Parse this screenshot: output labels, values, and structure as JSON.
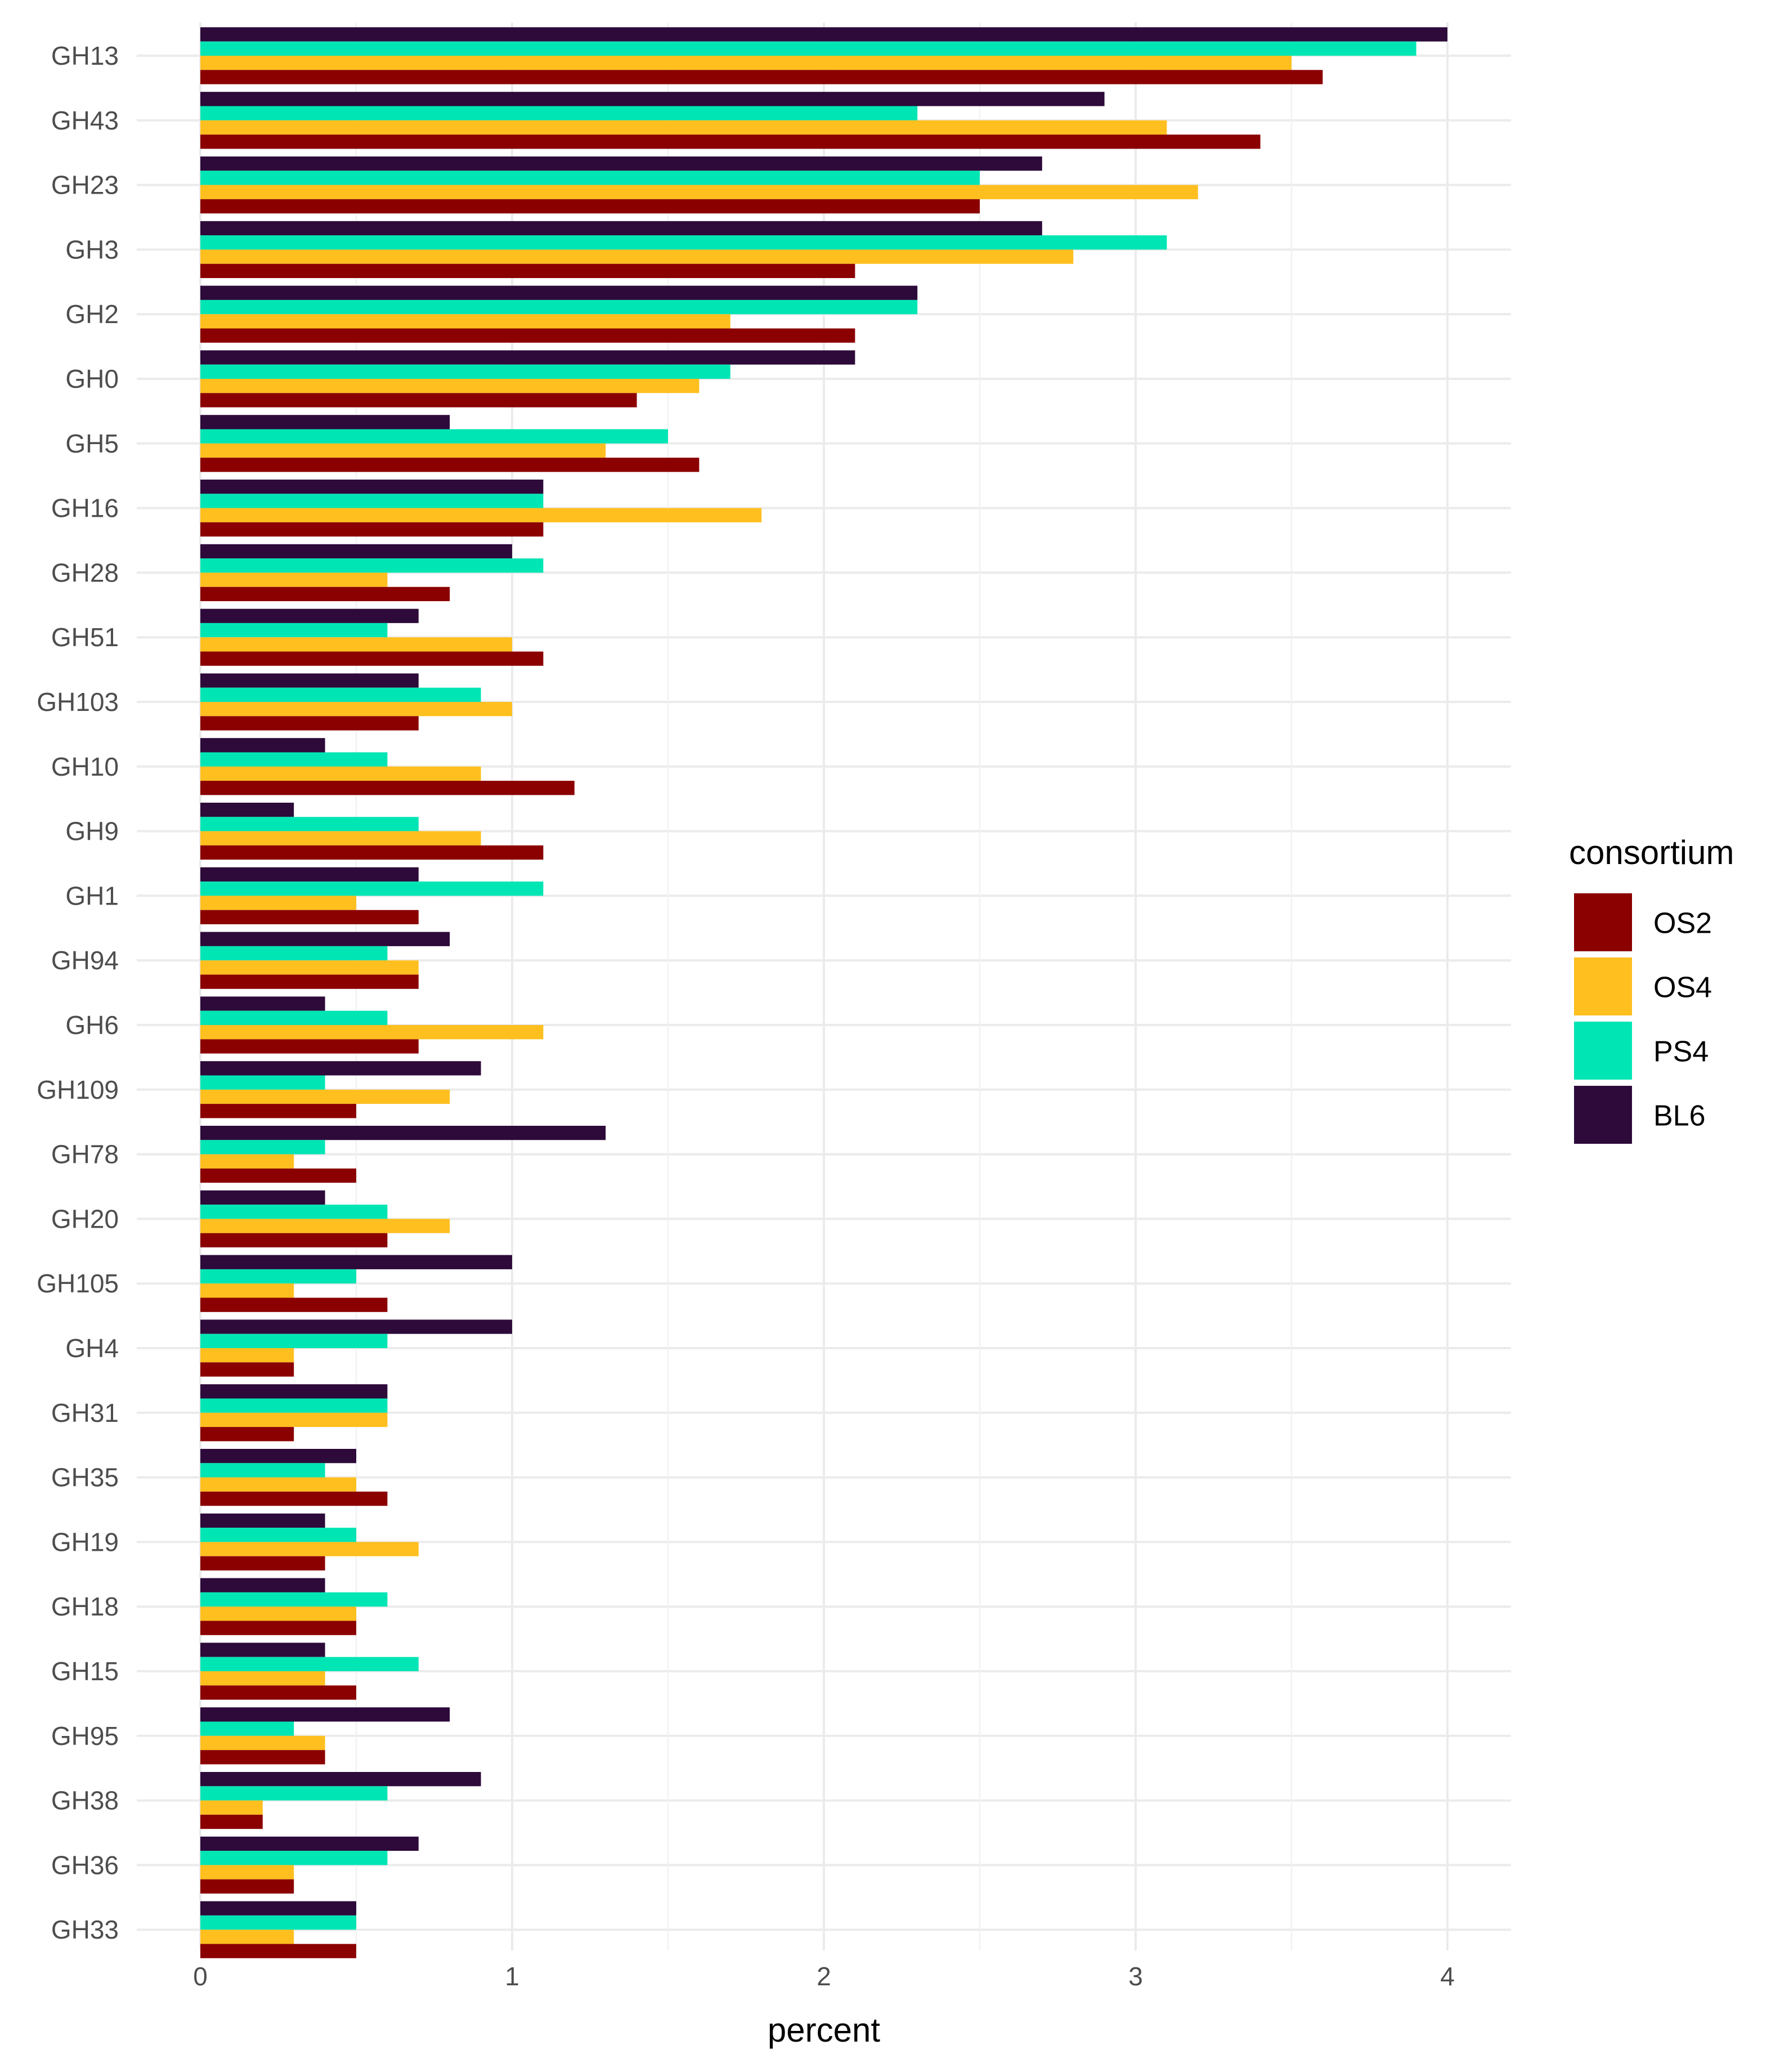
{
  "chart_data": {
    "type": "bar",
    "orientation": "horizontal",
    "xlabel": "percent",
    "ylabel": "",
    "xlim": [
      0,
      4.2
    ],
    "xticks": [
      0,
      1,
      2,
      3,
      4
    ],
    "grid": true,
    "legend": {
      "title": "consortium",
      "position": "right"
    },
    "categories": [
      "GH13",
      "GH43",
      "GH23",
      "GH3",
      "GH2",
      "GH0",
      "GH5",
      "GH16",
      "GH28",
      "GH51",
      "GH103",
      "GH10",
      "GH9",
      "GH1",
      "GH94",
      "GH6",
      "GH109",
      "GH78",
      "GH20",
      "GH105",
      "GH4",
      "GH31",
      "GH35",
      "GH19",
      "GH18",
      "GH15",
      "GH95",
      "GH38",
      "GH36",
      "GH33"
    ],
    "series": [
      {
        "name": "OS2",
        "color": "#8b0000",
        "values": [
          3.6,
          3.4,
          2.5,
          2.1,
          2.1,
          1.4,
          1.6,
          1.1,
          0.8,
          1.1,
          0.7,
          1.2,
          1.1,
          0.7,
          0.7,
          0.7,
          0.5,
          0.5,
          0.6,
          0.6,
          0.3,
          0.3,
          0.6,
          0.4,
          0.5,
          0.5,
          0.4,
          0.2,
          0.3,
          0.5
        ]
      },
      {
        "name": "OS4",
        "color": "#ffbf1f",
        "values": [
          3.5,
          3.1,
          3.2,
          2.8,
          1.7,
          1.6,
          1.3,
          1.8,
          0.6,
          1.0,
          1.0,
          0.9,
          0.9,
          0.5,
          0.7,
          1.1,
          0.8,
          0.3,
          0.8,
          0.3,
          0.3,
          0.6,
          0.5,
          0.7,
          0.5,
          0.4,
          0.4,
          0.2,
          0.3,
          0.3
        ]
      },
      {
        "name": "PS4",
        "color": "#00e5b4",
        "values": [
          3.9,
          2.3,
          2.5,
          3.1,
          2.3,
          1.7,
          1.5,
          1.1,
          1.1,
          0.6,
          0.9,
          0.6,
          0.7,
          1.1,
          0.6,
          0.6,
          0.4,
          0.4,
          0.6,
          0.5,
          0.6,
          0.6,
          0.4,
          0.5,
          0.6,
          0.7,
          0.3,
          0.6,
          0.6,
          0.5
        ]
      },
      {
        "name": "BL6",
        "color": "#2d0a3a",
        "values": [
          4.0,
          2.9,
          2.7,
          2.7,
          2.3,
          2.1,
          0.8,
          1.1,
          1.0,
          0.7,
          0.7,
          0.4,
          0.3,
          0.7,
          0.8,
          0.4,
          0.9,
          1.3,
          0.4,
          1.0,
          1.0,
          0.6,
          0.5,
          0.4,
          0.4,
          0.4,
          0.8,
          0.9,
          0.7,
          0.5
        ]
      }
    ],
    "legend_order": [
      "OS2",
      "OS4",
      "PS4",
      "BL6"
    ]
  }
}
